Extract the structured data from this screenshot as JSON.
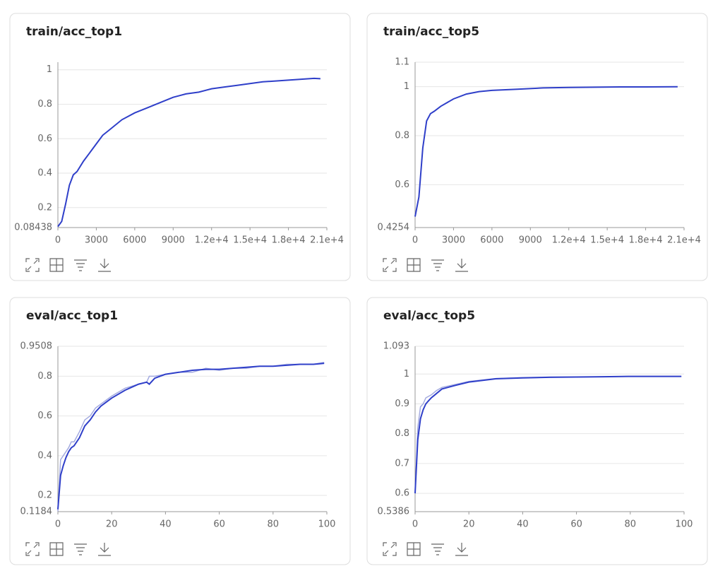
{
  "chart_data": [
    {
      "type": "line",
      "title": "train/acc_top1",
      "x": [
        0,
        300,
        600,
        900,
        1200,
        1500,
        2000,
        2500,
        3000,
        3500,
        4000,
        5000,
        6000,
        7000,
        8000,
        9000,
        10000,
        11000,
        12000,
        13000,
        14000,
        15000,
        16000,
        17000,
        18000,
        19000,
        20000,
        20500
      ],
      "series": [
        {
          "color": "#2f3fc9",
          "values": [
            0.09,
            0.12,
            0.22,
            0.33,
            0.39,
            0.41,
            0.47,
            0.52,
            0.57,
            0.62,
            0.65,
            0.71,
            0.75,
            0.78,
            0.81,
            0.84,
            0.86,
            0.87,
            0.89,
            0.9,
            0.91,
            0.92,
            0.93,
            0.935,
            0.94,
            0.945,
            0.95,
            0.948
          ]
        }
      ],
      "xlim": [
        0,
        21000
      ],
      "xticks": [
        0,
        3000,
        6000,
        9000,
        {
          "value": 12000,
          "label": "1.2e+4"
        },
        {
          "value": 15000,
          "label": "1.5e+4"
        },
        {
          "value": 18000,
          "label": "1.8e+4"
        },
        {
          "value": 21000,
          "label": "2.1e+4"
        }
      ],
      "ylim": [
        0.08438,
        1.044
      ],
      "yticks": [
        0.08438,
        0.2,
        0.4,
        0.6,
        0.8,
        1
      ],
      "grid": true
    },
    {
      "type": "line",
      "title": "train/acc_top5",
      "x": [
        0,
        300,
        600,
        900,
        1200,
        1500,
        2000,
        3000,
        4000,
        5000,
        6000,
        8000,
        10000,
        12000,
        14000,
        16000,
        18000,
        20500
      ],
      "series": [
        {
          "color": "#2f3fc9",
          "values": [
            0.47,
            0.55,
            0.75,
            0.86,
            0.89,
            0.9,
            0.92,
            0.95,
            0.97,
            0.98,
            0.985,
            0.99,
            0.995,
            0.997,
            0.998,
            0.999,
            0.999,
            1.0
          ]
        }
      ],
      "xlim": [
        0,
        21000
      ],
      "xticks": [
        0,
        3000,
        6000,
        9000,
        {
          "value": 12000,
          "label": "1.2e+4"
        },
        {
          "value": 15000,
          "label": "1.5e+4"
        },
        {
          "value": 18000,
          "label": "1.8e+4"
        },
        {
          "value": 21000,
          "label": "2.1e+4"
        }
      ],
      "ylim": [
        0.4254,
        1.1
      ],
      "yticks": [
        0.4254,
        0.6,
        0.8,
        1,
        1.1
      ],
      "grid": true
    },
    {
      "type": "line",
      "title": "eval/acc_top1",
      "x": [
        0,
        1,
        2,
        3,
        4,
        5,
        6,
        8,
        10,
        12,
        14,
        16,
        18,
        20,
        25,
        30,
        33,
        34,
        36,
        40,
        45,
        50,
        55,
        60,
        65,
        70,
        75,
        80,
        85,
        90,
        95,
        99
      ],
      "series": [
        {
          "color": "#a4abe0",
          "values": [
            0.12,
            0.38,
            0.4,
            0.42,
            0.44,
            0.47,
            0.47,
            0.52,
            0.58,
            0.6,
            0.64,
            0.66,
            0.68,
            0.7,
            0.74,
            0.76,
            0.77,
            0.8,
            0.8,
            0.81,
            0.82,
            0.82,
            0.84,
            0.83,
            0.84,
            0.84,
            0.85,
            0.85,
            0.86,
            0.86,
            0.86,
            0.87
          ]
        },
        {
          "color": "#2f3fc9",
          "values": [
            0.13,
            0.3,
            0.35,
            0.39,
            0.42,
            0.44,
            0.45,
            0.49,
            0.55,
            0.58,
            0.62,
            0.65,
            0.67,
            0.69,
            0.73,
            0.76,
            0.77,
            0.76,
            0.79,
            0.81,
            0.82,
            0.83,
            0.835,
            0.835,
            0.84,
            0.845,
            0.85,
            0.85,
            0.855,
            0.86,
            0.86,
            0.865
          ]
        }
      ],
      "xlim": [
        0,
        100
      ],
      "xticks": [
        0,
        20,
        40,
        60,
        80,
        100
      ],
      "ylim": [
        0.1184,
        0.9508
      ],
      "yticks": [
        0.1184,
        0.2,
        0.4,
        0.6,
        0.8,
        0.9508
      ],
      "grid": true
    },
    {
      "type": "line",
      "title": "eval/acc_top5",
      "x": [
        0,
        1,
        2,
        3,
        4,
        5,
        6,
        8,
        10,
        15,
        20,
        30,
        40,
        50,
        60,
        70,
        80,
        90,
        99
      ],
      "series": [
        {
          "color": "#a4abe0",
          "values": [
            0.6,
            0.82,
            0.89,
            0.9,
            0.92,
            0.925,
            0.93,
            0.945,
            0.955,
            0.965,
            0.975,
            0.985,
            0.988,
            0.99,
            0.99,
            0.991,
            0.992,
            0.992,
            0.992
          ]
        },
        {
          "color": "#2f3fc9",
          "values": [
            0.6,
            0.78,
            0.85,
            0.88,
            0.9,
            0.91,
            0.92,
            0.935,
            0.95,
            0.962,
            0.973,
            0.984,
            0.987,
            0.989,
            0.99,
            0.991,
            0.992,
            0.992,
            0.992
          ]
        }
      ],
      "xlim": [
        0,
        100
      ],
      "xticks": [
        0,
        20,
        40,
        60,
        80,
        100
      ],
      "ylim": [
        0.5386,
        1.093
      ],
      "yticks": [
        0.5386,
        0.6,
        0.7,
        0.8,
        0.9,
        1,
        1.093
      ],
      "grid": true
    }
  ]
}
